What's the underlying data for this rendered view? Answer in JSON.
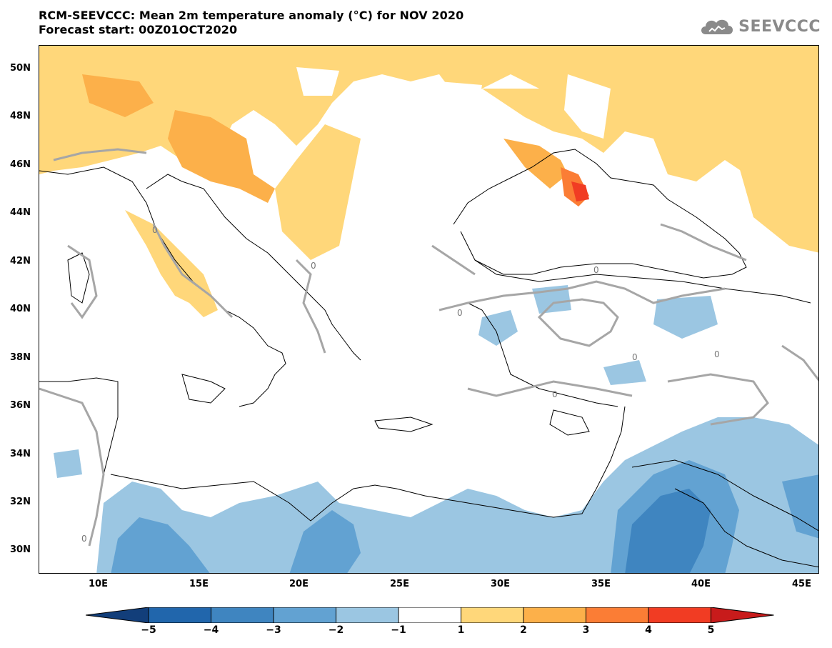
{
  "header": {
    "title": "RCM-SEEVCCC: Mean 2m temperature anomaly (°C) for NOV 2020",
    "subtitle": "Forecast start: 00Z01OCT2020",
    "logo_text": "SEEVCCC",
    "logo_icon": "cloud-icon"
  },
  "map": {
    "lat_labels": [
      "50N",
      "48N",
      "46N",
      "44N",
      "42N",
      "40N",
      "38N",
      "36N",
      "34N",
      "32N",
      "30N"
    ],
    "lon_labels": [
      "10E",
      "15E",
      "20E",
      "25E",
      "30E",
      "35E",
      "40E",
      "45E"
    ],
    "contour_label": "0"
  },
  "colorbar": {
    "labels": [
      "−5",
      "−4",
      "−3",
      "−2",
      "−1",
      "1",
      "2",
      "3",
      "4",
      "5"
    ],
    "colors": [
      "#2166ac",
      "#3f85c0",
      "#62a2d2",
      "#9bc6e2",
      "#ffffff",
      "#ffd77a",
      "#fcb04a",
      "#fb7d35",
      "#f13c23",
      "#c81b1b"
    ],
    "under_color": "#123e7a",
    "over_color": "#c81b1b"
  },
  "colors": {
    "land_border": "#000000",
    "contour": "#a6a6a6",
    "warm1": "#ffd77a",
    "warm2": "#fcb04a",
    "warm3": "#fb7d35",
    "warm4": "#f13c23",
    "cool1": "#9bc6e2",
    "cool2": "#62a2d2",
    "cool3": "#3f85c0"
  }
}
